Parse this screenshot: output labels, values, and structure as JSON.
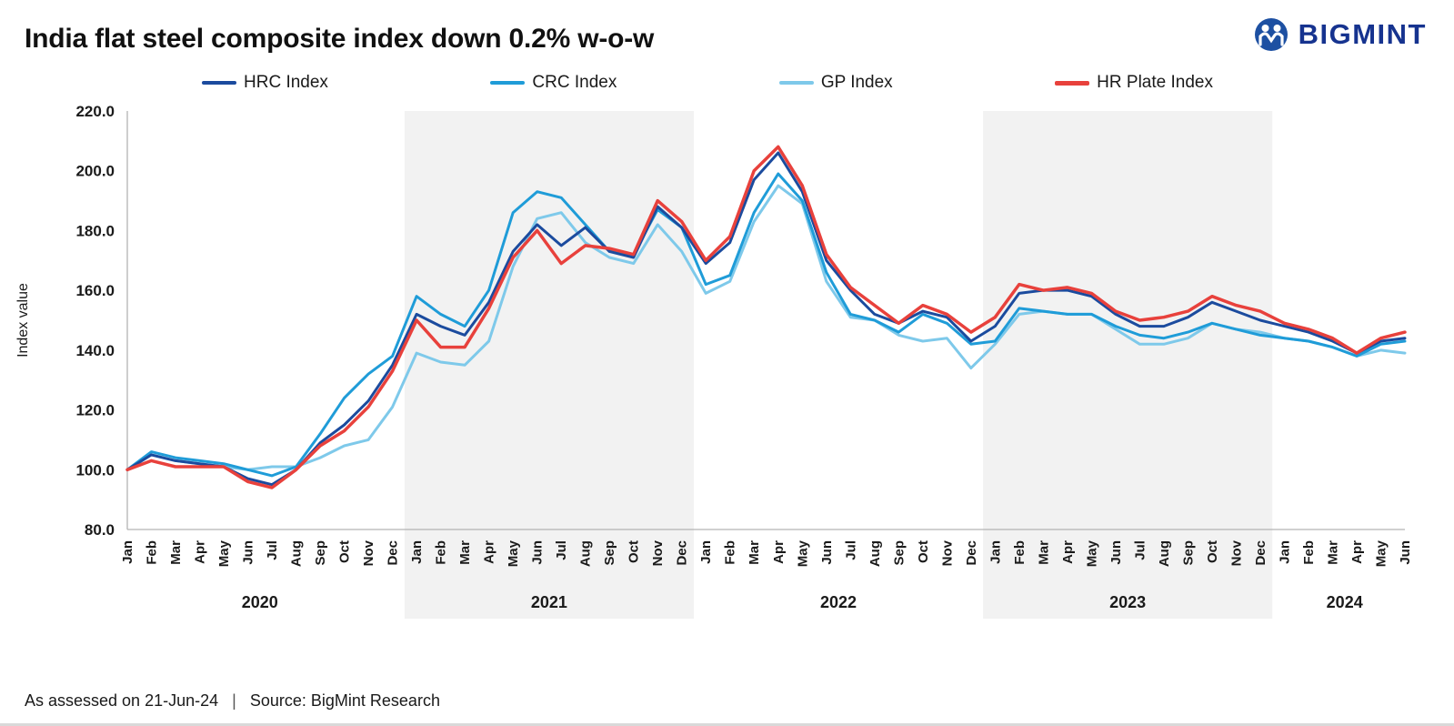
{
  "title": "India flat steel composite index down 0.2% w-o-w",
  "logo": {
    "text": "BIGMINT"
  },
  "footer": {
    "assessed": "As assessed on 21-Jun-24",
    "separator": "|",
    "source": "Source: BigMint Research"
  },
  "chart_data": {
    "type": "line",
    "title": "India flat steel composite index down 0.2% w-o-w",
    "xlabel": "",
    "ylabel": "Index value",
    "ylim": [
      80,
      220
    ],
    "ytick_step": 20,
    "grid": false,
    "legend_position": "top",
    "band_color": "#f2f2f2",
    "axis_color": "#b3b3b3",
    "label_color": "#1a1a1a",
    "x_labels": [
      "Jan",
      "Feb",
      "Mar",
      "Apr",
      "May",
      "Jun",
      "Jul",
      "Aug",
      "Sep",
      "Oct",
      "Nov",
      "Dec",
      "Jan",
      "Feb",
      "Mar",
      "Apr",
      "May",
      "Jun",
      "Jul",
      "Aug",
      "Sep",
      "Oct",
      "Nov",
      "Dec",
      "Jan",
      "Feb",
      "Mar",
      "Apr",
      "May",
      "Jun",
      "Jul",
      "Aug",
      "Sep",
      "Oct",
      "Nov",
      "Dec",
      "Jan",
      "Feb",
      "Mar",
      "Apr",
      "May",
      "Jun",
      "Jul",
      "Aug",
      "Sep",
      "Oct",
      "Nov",
      "Dec",
      "Jan",
      "Feb",
      "Mar",
      "Apr",
      "May",
      "Jun"
    ],
    "year_groups": [
      {
        "label": "2020",
        "start": 0,
        "count": 12,
        "shaded": false
      },
      {
        "label": "2021",
        "start": 12,
        "count": 12,
        "shaded": true
      },
      {
        "label": "2022",
        "start": 24,
        "count": 12,
        "shaded": false
      },
      {
        "label": "2023",
        "start": 36,
        "count": 12,
        "shaded": true
      },
      {
        "label": "2024",
        "start": 48,
        "count": 6,
        "shaded": false
      }
    ],
    "draw_order": [
      2,
      1,
      0,
      3
    ],
    "series": [
      {
        "name": "HRC Index",
        "color": "#1b4b9e",
        "width": 3,
        "values": [
          100,
          105,
          103,
          102,
          101,
          97,
          95,
          100,
          109,
          115,
          123,
          135,
          152,
          148,
          145,
          156,
          173,
          182,
          175,
          181,
          173,
          171,
          188,
          181,
          169,
          176,
          197,
          206,
          193,
          170,
          160,
          152,
          149,
          153,
          151,
          143,
          148,
          159,
          160,
          160,
          158,
          152,
          148,
          148,
          151,
          156,
          153,
          150,
          148,
          146,
          143,
          139,
          143,
          144
        ]
      },
      {
        "name": "CRC Index",
        "color": "#1f9cd8",
        "width": 3,
        "values": [
          100,
          106,
          104,
          103,
          102,
          100,
          98,
          101,
          112,
          124,
          132,
          138,
          158,
          152,
          148,
          160,
          186,
          193,
          191,
          182,
          173,
          172,
          187,
          181,
          162,
          165,
          186,
          199,
          190,
          166,
          152,
          150,
          146,
          152,
          149,
          142,
          143,
          154,
          153,
          152,
          152,
          148,
          145,
          144,
          146,
          149,
          147,
          145,
          144,
          143,
          141,
          138,
          142,
          143
        ]
      },
      {
        "name": "GP Index",
        "color": "#7ec9ea",
        "width": 3,
        "values": [
          100,
          105,
          103,
          102,
          101,
          100,
          101,
          101,
          104,
          108,
          110,
          121,
          139,
          136,
          135,
          143,
          168,
          184,
          186,
          176,
          171,
          169,
          182,
          173,
          159,
          163,
          183,
          195,
          189,
          163,
          151,
          150,
          145,
          143,
          144,
          134,
          142,
          152,
          153,
          152,
          152,
          147,
          142,
          142,
          144,
          149,
          147,
          146,
          144,
          143,
          141,
          138,
          140,
          139
        ]
      },
      {
        "name": "HR Plate Index",
        "color": "#e8413c",
        "width": 3.5,
        "values": [
          100,
          103,
          101,
          101,
          101,
          96,
          94,
          100,
          108,
          113,
          121,
          133,
          150,
          141,
          141,
          154,
          171,
          180,
          169,
          175,
          174,
          172,
          190,
          183,
          170,
          178,
          200,
          208,
          195,
          172,
          161,
          155,
          149,
          155,
          152,
          146,
          151,
          162,
          160,
          161,
          159,
          153,
          150,
          151,
          153,
          158,
          155,
          153,
          149,
          147,
          144,
          139,
          144,
          146
        ]
      }
    ]
  }
}
